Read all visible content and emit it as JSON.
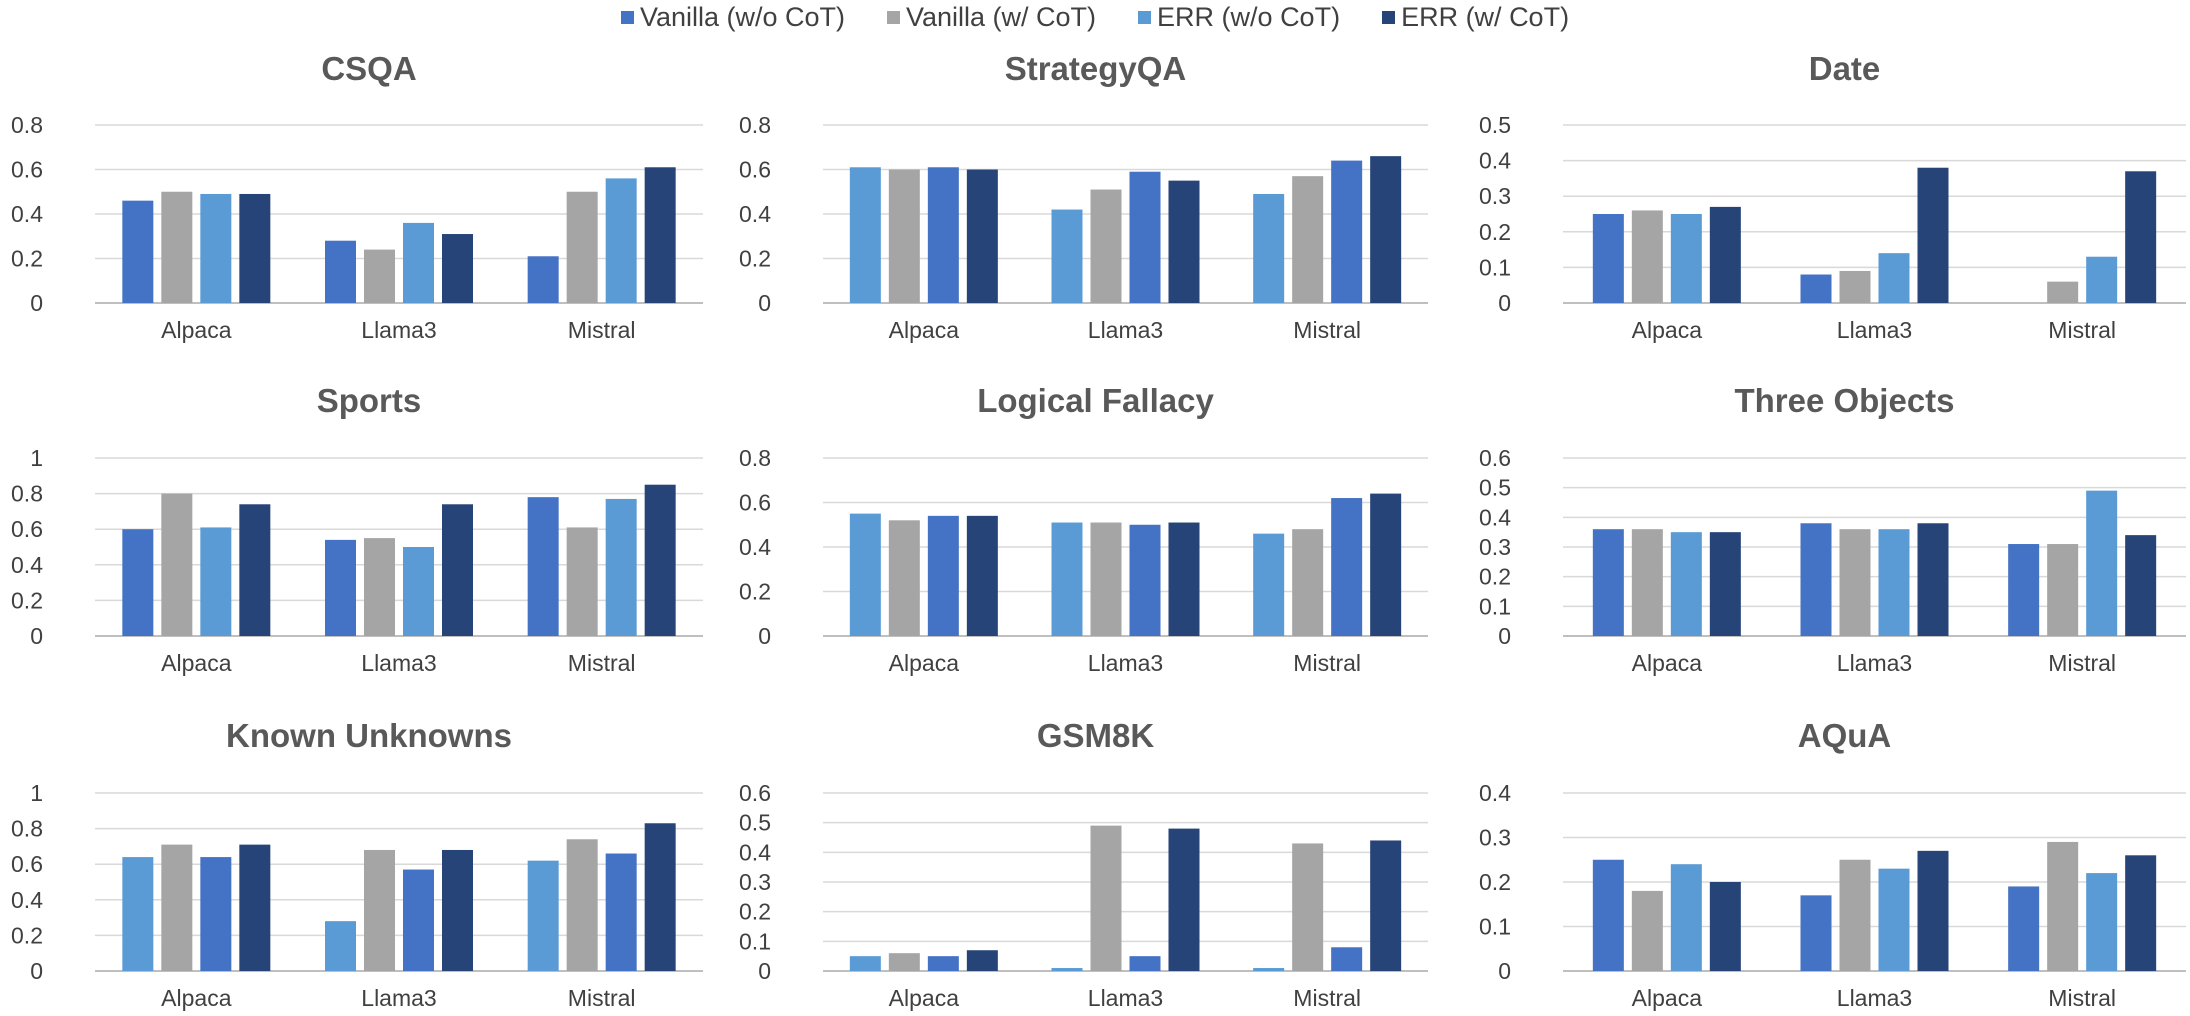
{
  "legend": [
    {
      "label": "Vanilla (w/o CoT)",
      "color": "#4472c4"
    },
    {
      "label": "Vanilla (w/ CoT)",
      "color": "#a5a5a5"
    },
    {
      "label": "ERR (w/o CoT)",
      "color": "#5b9bd5"
    },
    {
      "label": "ERR (w/ CoT)",
      "color": "#264478"
    }
  ],
  "chart_data": [
    {
      "type": "bar",
      "title": "CSQA",
      "categories": [
        "Alpaca",
        "Llama3",
        "Mistral"
      ],
      "ylim": [
        0,
        0.8
      ],
      "yticks": [
        "0",
        "0.2",
        "0.4",
        "0.6",
        "0.8"
      ],
      "series": [
        {
          "name": "Vanilla (w/o CoT)",
          "values": [
            0.46,
            0.28,
            0.21
          ]
        },
        {
          "name": "Vanilla (w/ CoT)",
          "values": [
            0.5,
            0.24,
            0.5
          ]
        },
        {
          "name": "ERR (w/o CoT)",
          "values": [
            0.49,
            0.36,
            0.56
          ]
        },
        {
          "name": "ERR (w/ CoT)",
          "values": [
            0.49,
            0.31,
            0.61
          ]
        }
      ]
    },
    {
      "type": "bar",
      "title": "StrategyQA",
      "categories": [
        "Alpaca",
        "Llama3",
        "Mistral"
      ],
      "ylim": [
        0,
        0.8
      ],
      "yticks": [
        "0",
        "0.2",
        "0.4",
        "0.6",
        "0.8"
      ],
      "series": [
        {
          "name": "ERR (w/o CoT)",
          "values": [
            0.61,
            0.42,
            0.49
          ]
        },
        {
          "name": "Vanilla (w/ CoT)",
          "values": [
            0.6,
            0.51,
            0.57
          ]
        },
        {
          "name": "Vanilla (w/o CoT)",
          "values": [
            0.61,
            0.59,
            0.64
          ]
        },
        {
          "name": "ERR (w/ CoT)",
          "values": [
            0.6,
            0.55,
            0.66
          ]
        }
      ]
    },
    {
      "type": "bar",
      "title": "Date",
      "categories": [
        "Alpaca",
        "Llama3",
        "Mistral"
      ],
      "ylim": [
        0,
        0.5
      ],
      "yticks": [
        "0",
        "0.1",
        "0.2",
        "0.3",
        "0.4",
        "0.5"
      ],
      "series": [
        {
          "name": "Vanilla (w/o CoT)",
          "values": [
            0.25,
            0.08,
            0.0
          ]
        },
        {
          "name": "Vanilla (w/ CoT)",
          "values": [
            0.26,
            0.09,
            0.06
          ]
        },
        {
          "name": "ERR (w/o CoT)",
          "values": [
            0.25,
            0.14,
            0.13
          ]
        },
        {
          "name": "ERR (w/ CoT)",
          "values": [
            0.27,
            0.38,
            0.37
          ]
        }
      ]
    },
    {
      "type": "bar",
      "title": "Sports",
      "categories": [
        "Alpaca",
        "Llama3",
        "Mistral"
      ],
      "ylim": [
        0,
        1
      ],
      "yticks": [
        "0",
        "0.2",
        "0.4",
        "0.6",
        "0.8",
        "1"
      ],
      "series": [
        {
          "name": "Vanilla (w/o CoT)",
          "values": [
            0.6,
            0.54,
            0.78
          ]
        },
        {
          "name": "Vanilla (w/ CoT)",
          "values": [
            0.8,
            0.55,
            0.61
          ]
        },
        {
          "name": "ERR (w/o CoT)",
          "values": [
            0.61,
            0.5,
            0.77
          ]
        },
        {
          "name": "ERR (w/ CoT)",
          "values": [
            0.74,
            0.74,
            0.85
          ]
        }
      ]
    },
    {
      "type": "bar",
      "title": "Logical Fallacy",
      "categories": [
        "Alpaca",
        "Llama3",
        "Mistral"
      ],
      "ylim": [
        0,
        0.8
      ],
      "yticks": [
        "0",
        "0.2",
        "0.4",
        "0.6",
        "0.8"
      ],
      "series": [
        {
          "name": "ERR (w/o CoT)",
          "values": [
            0.55,
            0.51,
            0.46
          ]
        },
        {
          "name": "Vanilla (w/ CoT)",
          "values": [
            0.52,
            0.51,
            0.48
          ]
        },
        {
          "name": "Vanilla (w/o CoT)",
          "values": [
            0.54,
            0.5,
            0.62
          ]
        },
        {
          "name": "ERR (w/ CoT)",
          "values": [
            0.54,
            0.51,
            0.64
          ]
        }
      ]
    },
    {
      "type": "bar",
      "title": "Three Objects",
      "categories": [
        "Alpaca",
        "Llama3",
        "Mistral"
      ],
      "ylim": [
        0,
        0.6
      ],
      "yticks": [
        "0",
        "0.1",
        "0.2",
        "0.3",
        "0.4",
        "0.5",
        "0.6"
      ],
      "series": [
        {
          "name": "Vanilla (w/o CoT)",
          "values": [
            0.36,
            0.38,
            0.31
          ]
        },
        {
          "name": "Vanilla (w/ CoT)",
          "values": [
            0.36,
            0.36,
            0.31
          ]
        },
        {
          "name": "ERR (w/o CoT)",
          "values": [
            0.35,
            0.36,
            0.49
          ]
        },
        {
          "name": "ERR (w/ CoT)",
          "values": [
            0.35,
            0.38,
            0.34
          ]
        }
      ]
    },
    {
      "type": "bar",
      "title": "Known Unknowns",
      "categories": [
        "Alpaca",
        "Llama3",
        "Mistral"
      ],
      "ylim": [
        0,
        1
      ],
      "yticks": [
        "0",
        "0.2",
        "0.4",
        "0.6",
        "0.8",
        "1"
      ],
      "series": [
        {
          "name": "ERR (w/o CoT)",
          "values": [
            0.64,
            0.28,
            0.62
          ]
        },
        {
          "name": "Vanilla (w/ CoT)",
          "values": [
            0.71,
            0.68,
            0.74
          ]
        },
        {
          "name": "Vanilla (w/o CoT)",
          "values": [
            0.64,
            0.57,
            0.66
          ]
        },
        {
          "name": "ERR (w/ CoT)",
          "values": [
            0.71,
            0.68,
            0.83
          ]
        }
      ]
    },
    {
      "type": "bar",
      "title": "GSM8K",
      "categories": [
        "Alpaca",
        "Llama3",
        "Mistral"
      ],
      "ylim": [
        0,
        0.6
      ],
      "yticks": [
        "0",
        "0.1",
        "0.2",
        "0.3",
        "0.4",
        "0.5",
        "0.6"
      ],
      "series": [
        {
          "name": "ERR (w/o CoT)",
          "values": [
            0.05,
            0.01,
            0.01
          ]
        },
        {
          "name": "Vanilla (w/ CoT)",
          "values": [
            0.06,
            0.49,
            0.43
          ]
        },
        {
          "name": "Vanilla (w/o CoT)",
          "values": [
            0.05,
            0.05,
            0.08
          ]
        },
        {
          "name": "ERR (w/ CoT)",
          "values": [
            0.07,
            0.48,
            0.44
          ]
        }
      ]
    },
    {
      "type": "bar",
      "title": "AQuA",
      "categories": [
        "Alpaca",
        "Llama3",
        "Mistral"
      ],
      "ylim": [
        0,
        0.4
      ],
      "yticks": [
        "0",
        "0.1",
        "0.2",
        "0.3",
        "0.4"
      ],
      "series": [
        {
          "name": "Vanilla (w/o CoT)",
          "values": [
            0.25,
            0.17,
            0.19
          ]
        },
        {
          "name": "Vanilla (w/ CoT)",
          "values": [
            0.18,
            0.25,
            0.29
          ]
        },
        {
          "name": "ERR (w/o CoT)",
          "values": [
            0.24,
            0.23,
            0.22
          ]
        },
        {
          "name": "ERR (w/ CoT)",
          "values": [
            0.2,
            0.27,
            0.26
          ]
        }
      ]
    }
  ]
}
